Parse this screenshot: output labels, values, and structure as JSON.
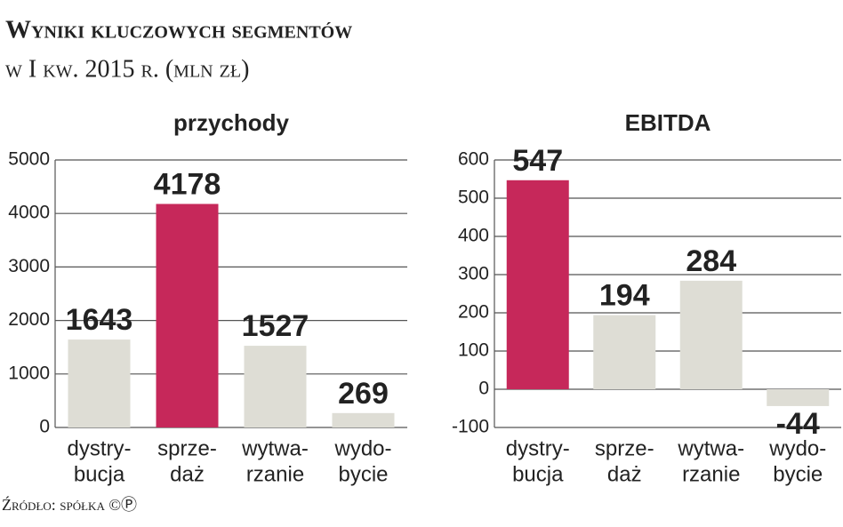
{
  "title": "Wyniki kluczowych segmentów",
  "subtitle": "w I kw. 2015 r. (mln zł)",
  "source": "Źródło: spółka ©Ⓟ",
  "chart_data": [
    {
      "type": "bar",
      "title": "przychody",
      "categories": [
        [
          "dystry-",
          "bucja"
        ],
        [
          "sprze-",
          "daż"
        ],
        [
          "wytwa-",
          "rzanie"
        ],
        [
          "wydo-",
          "bycie"
        ]
      ],
      "values": [
        1643,
        4178,
        1527,
        269
      ],
      "colors": [
        "#deddd5",
        "#c6285a",
        "#deddd5",
        "#deddd5"
      ],
      "ylim": [
        0,
        5000
      ],
      "yticks": [
        0,
        1000,
        2000,
        3000,
        4000,
        5000
      ],
      "grid": true
    },
    {
      "type": "bar",
      "title": "EBITDA",
      "categories": [
        [
          "dystry-",
          "bucja"
        ],
        [
          "sprze-",
          "daż"
        ],
        [
          "wytwa-",
          "rzanie"
        ],
        [
          "wydo-",
          "bycie"
        ]
      ],
      "values": [
        547,
        194,
        284,
        -44
      ],
      "colors": [
        "#c6285a",
        "#deddd5",
        "#deddd5",
        "#deddd5"
      ],
      "ylim": [
        -100,
        600
      ],
      "yticks": [
        -100,
        0,
        100,
        200,
        300,
        400,
        500,
        600
      ],
      "grid": true
    }
  ]
}
